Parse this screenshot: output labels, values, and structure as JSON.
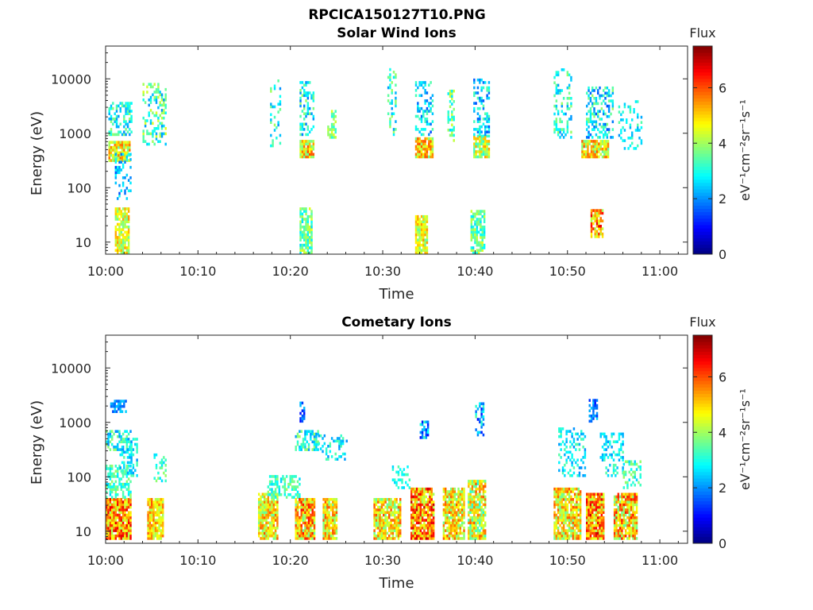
{
  "figure": {
    "title": "RPCICA150127T10.PNG"
  },
  "chart_data": [
    {
      "type": "heatmap",
      "title": "Solar Wind Ions",
      "xlabel": "Time",
      "ylabel": "Energy (eV)",
      "x_ticks": [
        "10:00",
        "10:10",
        "10:20",
        "10:30",
        "10:40",
        "10:50",
        "11:00"
      ],
      "x_range_minutes": [
        0,
        63
      ],
      "y_scale": "log",
      "y_ticks": [
        "10",
        "100",
        "1000",
        "10000"
      ],
      "y_range": [
        6,
        40000
      ],
      "colorbar": {
        "label": "Flux",
        "unit": "eV⁻¹cm⁻²sr⁻¹s⁻¹",
        "ticks": [
          "0",
          "2",
          "4",
          "6"
        ],
        "range": [
          0,
          7.5
        ],
        "colormap": "jet"
      },
      "clusters": [
        {
          "t": [
            0.3,
            2.6
          ],
          "e": [
            300,
            700
          ],
          "flux": [
            3.5,
            5.8
          ],
          "density": 0.85
        },
        {
          "t": [
            0.3,
            2.8
          ],
          "e": [
            900,
            3500
          ],
          "flux": [
            2,
            4
          ],
          "density": 0.5
        },
        {
          "t": [
            1.0,
            2.8
          ],
          "e": [
            60,
            400
          ],
          "flux": [
            1.5,
            3
          ],
          "density": 0.3
        },
        {
          "t": [
            1.0,
            2.6
          ],
          "e": [
            6,
            40
          ],
          "flux": [
            3.5,
            5.5
          ],
          "density": 0.8
        },
        {
          "t": [
            4.0,
            6.5
          ],
          "e": [
            600,
            8000
          ],
          "flux": [
            2,
            4.5
          ],
          "density": 0.35
        },
        {
          "t": [
            17.8,
            18.8
          ],
          "e": [
            500,
            9000
          ],
          "flux": [
            2,
            4
          ],
          "density": 0.25
        },
        {
          "t": [
            21.0,
            22.5
          ],
          "e": [
            350,
            700
          ],
          "flux": [
            3.5,
            6
          ],
          "density": 0.9
        },
        {
          "t": [
            21.0,
            22.5
          ],
          "e": [
            900,
            9000
          ],
          "flux": [
            1.8,
            4
          ],
          "density": 0.45
        },
        {
          "t": [
            21.0,
            22.2
          ],
          "e": [
            6,
            40
          ],
          "flux": [
            2.5,
            4.5
          ],
          "density": 0.7
        },
        {
          "t": [
            24.0,
            24.8
          ],
          "e": [
            800,
            2500
          ],
          "flux": [
            3,
            4.5
          ],
          "density": 0.6
        },
        {
          "t": [
            30.5,
            31.3
          ],
          "e": [
            900,
            15000
          ],
          "flux": [
            2,
            4
          ],
          "density": 0.3
        },
        {
          "t": [
            33.5,
            35.5
          ],
          "e": [
            350,
            800
          ],
          "flux": [
            3.5,
            6
          ],
          "density": 0.85
        },
        {
          "t": [
            33.5,
            35.5
          ],
          "e": [
            900,
            9000
          ],
          "flux": [
            1.5,
            3.5
          ],
          "density": 0.4
        },
        {
          "t": [
            33.5,
            34.8
          ],
          "e": [
            6,
            30
          ],
          "flux": [
            3.5,
            5.5
          ],
          "density": 0.85
        },
        {
          "t": [
            37.0,
            37.8
          ],
          "e": [
            700,
            6000
          ],
          "flux": [
            2.5,
            4.5
          ],
          "density": 0.4
        },
        {
          "t": [
            39.8,
            41.5
          ],
          "e": [
            350,
            900
          ],
          "flux": [
            3,
            5.5
          ],
          "density": 0.85
        },
        {
          "t": [
            39.8,
            41.5
          ],
          "e": [
            900,
            10000
          ],
          "flux": [
            1.5,
            3.5
          ],
          "density": 0.4
        },
        {
          "t": [
            39.5,
            41.0
          ],
          "e": [
            6,
            35
          ],
          "flux": [
            2.5,
            4.5
          ],
          "density": 0.75
        },
        {
          "t": [
            48.5,
            50.5
          ],
          "e": [
            800,
            15000
          ],
          "flux": [
            2,
            4
          ],
          "density": 0.25
        },
        {
          "t": [
            51.5,
            54.5
          ],
          "e": [
            350,
            700
          ],
          "flux": [
            3.5,
            6
          ],
          "density": 0.85
        },
        {
          "t": [
            52.0,
            55.0
          ],
          "e": [
            800,
            7000
          ],
          "flux": [
            1.5,
            4
          ],
          "density": 0.45
        },
        {
          "t": [
            52.5,
            53.8
          ],
          "e": [
            12,
            40
          ],
          "flux": [
            4,
            6.8
          ],
          "density": 0.85
        },
        {
          "t": [
            55.5,
            58.0
          ],
          "e": [
            500,
            4000
          ],
          "flux": [
            2,
            3.5
          ],
          "density": 0.2
        }
      ]
    },
    {
      "type": "heatmap",
      "title": "Cometary Ions",
      "xlabel": "Time",
      "ylabel": "Energy (eV)",
      "x_ticks": [
        "10:00",
        "10:10",
        "10:20",
        "10:30",
        "10:40",
        "10:50",
        "11:00"
      ],
      "x_range_minutes": [
        0,
        63
      ],
      "y_scale": "log",
      "y_ticks": [
        "10",
        "100",
        "1000",
        "10000"
      ],
      "y_range": [
        6,
        40000
      ],
      "colorbar": {
        "label": "Flux",
        "unit": "eV⁻¹cm⁻²sr⁻¹s⁻¹",
        "ticks": [
          "0",
          "2",
          "4",
          "6"
        ],
        "range": [
          0,
          7.5
        ],
        "colormap": "jet"
      },
      "clusters": [
        {
          "t": [
            0.0,
            2.8
          ],
          "e": [
            7,
            40
          ],
          "flux": [
            4,
            6.8
          ],
          "density": 0.95
        },
        {
          "t": [
            0.0,
            2.8
          ],
          "e": [
            40,
            150
          ],
          "flux": [
            2.5,
            4
          ],
          "density": 0.55
        },
        {
          "t": [
            0.0,
            2.8
          ],
          "e": [
            300,
            700
          ],
          "flux": [
            2,
            4
          ],
          "density": 0.5
        },
        {
          "t": [
            0.5,
            2.2
          ],
          "e": [
            1500,
            2500
          ],
          "flux": [
            1.5,
            2.5
          ],
          "density": 0.6
        },
        {
          "t": [
            1.5,
            3.5
          ],
          "e": [
            100,
            500
          ],
          "flux": [
            2,
            3.5
          ],
          "density": 0.4
        },
        {
          "t": [
            4.5,
            6.2
          ],
          "e": [
            7,
            40
          ],
          "flux": [
            4,
            6
          ],
          "density": 0.9
        },
        {
          "t": [
            5.2,
            6.5
          ],
          "e": [
            80,
            250
          ],
          "flux": [
            2.5,
            4
          ],
          "density": 0.35
        },
        {
          "t": [
            16.5,
            18.5
          ],
          "e": [
            7,
            50
          ],
          "flux": [
            3.5,
            6
          ],
          "density": 0.85
        },
        {
          "t": [
            17.5,
            21.0
          ],
          "e": [
            40,
            100
          ],
          "flux": [
            2.5,
            4
          ],
          "density": 0.5
        },
        {
          "t": [
            20.5,
            22.5
          ],
          "e": [
            7,
            40
          ],
          "flux": [
            3.5,
            6.5
          ],
          "density": 0.9
        },
        {
          "t": [
            20.5,
            23.0
          ],
          "e": [
            300,
            700
          ],
          "flux": [
            2,
            4
          ],
          "density": 0.6
        },
        {
          "t": [
            21.0,
            21.5
          ],
          "e": [
            1000,
            2200
          ],
          "flux": [
            1,
            2.5
          ],
          "density": 0.7
        },
        {
          "t": [
            23.5,
            25.0
          ],
          "e": [
            7,
            40
          ],
          "flux": [
            3.5,
            6
          ],
          "density": 0.9
        },
        {
          "t": [
            23.0,
            26.0
          ],
          "e": [
            200,
            600
          ],
          "flux": [
            2,
            3.5
          ],
          "density": 0.3
        },
        {
          "t": [
            29.0,
            31.8
          ],
          "e": [
            7,
            40
          ],
          "flux": [
            3.5,
            6
          ],
          "density": 0.85
        },
        {
          "t": [
            31.0,
            33.0
          ],
          "e": [
            60,
            150
          ],
          "flux": [
            2.5,
            3.5
          ],
          "density": 0.3
        },
        {
          "t": [
            33.0,
            35.5
          ],
          "e": [
            7,
            60
          ],
          "flux": [
            4,
            7
          ],
          "density": 0.9
        },
        {
          "t": [
            34.0,
            35.0
          ],
          "e": [
            500,
            1100
          ],
          "flux": [
            1,
            3.5
          ],
          "density": 0.6
        },
        {
          "t": [
            36.5,
            38.8
          ],
          "e": [
            7,
            60
          ],
          "flux": [
            3.5,
            6
          ],
          "density": 0.85
        },
        {
          "t": [
            39.2,
            41.2
          ],
          "e": [
            7,
            80
          ],
          "flux": [
            3,
            6
          ],
          "density": 0.85
        },
        {
          "t": [
            40.0,
            41.0
          ],
          "e": [
            500,
            2200
          ],
          "flux": [
            1,
            3.5
          ],
          "density": 0.5
        },
        {
          "t": [
            48.5,
            51.5
          ],
          "e": [
            7,
            60
          ],
          "flux": [
            3.5,
            6
          ],
          "density": 0.85
        },
        {
          "t": [
            49.0,
            52.0
          ],
          "e": [
            100,
            800
          ],
          "flux": [
            2,
            3.5
          ],
          "density": 0.3
        },
        {
          "t": [
            52.0,
            54.0
          ],
          "e": [
            7,
            50
          ],
          "flux": [
            4,
            7
          ],
          "density": 0.95
        },
        {
          "t": [
            52.3,
            53.3
          ],
          "e": [
            1000,
            2500
          ],
          "flux": [
            1,
            2.5
          ],
          "density": 0.6
        },
        {
          "t": [
            53.5,
            56.0
          ],
          "e": [
            100,
            600
          ],
          "flux": [
            2,
            3.5
          ],
          "density": 0.35
        },
        {
          "t": [
            55.0,
            57.5
          ],
          "e": [
            7,
            50
          ],
          "flux": [
            3.5,
            6.5
          ],
          "density": 0.9
        },
        {
          "t": [
            56.0,
            58.0
          ],
          "e": [
            60,
            200
          ],
          "flux": [
            2.5,
            4
          ],
          "density": 0.4
        }
      ]
    }
  ]
}
